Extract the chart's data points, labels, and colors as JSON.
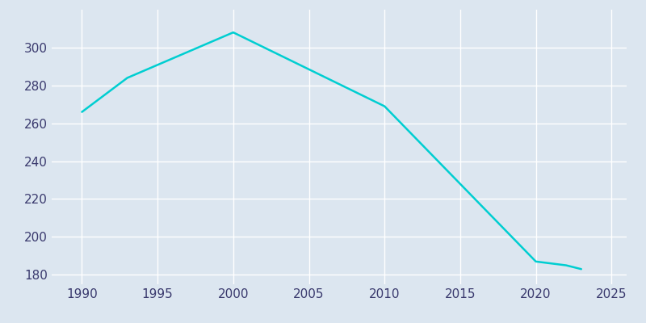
{
  "years": [
    1990,
    1993,
    2000,
    2010,
    2020,
    2022,
    2023
  ],
  "population": [
    266,
    284,
    308,
    269,
    187,
    185,
    183
  ],
  "line_color": "#00CED1",
  "background_color": "#dce6f0",
  "grid_color": "#ffffff",
  "text_color": "#3a3a6e",
  "xlim": [
    1988,
    2026
  ],
  "ylim": [
    175,
    320
  ],
  "xticks": [
    1990,
    1995,
    2000,
    2005,
    2010,
    2015,
    2020,
    2025
  ],
  "yticks": [
    180,
    200,
    220,
    240,
    260,
    280,
    300
  ],
  "linewidth": 1.8,
  "figsize": [
    8.0,
    4.0
  ],
  "dpi": 100
}
